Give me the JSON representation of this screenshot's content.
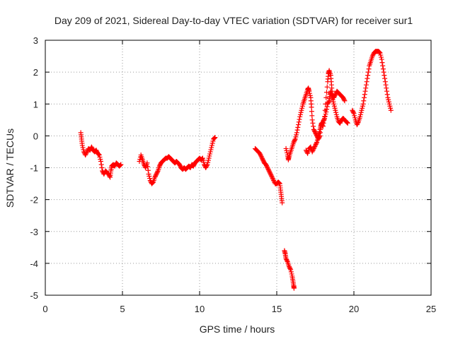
{
  "chart_data": {
    "type": "scatter",
    "title": "Day 209 of 2021, Sidereal Day-to-day VTEC variation (SDTVAR) for receiver sur1",
    "xlabel": "GPS time / hours",
    "ylabel": "SDTVAR / TECUs",
    "xlim": [
      0,
      25
    ],
    "ylim": [
      -5,
      3
    ],
    "xticks": [
      0,
      5,
      10,
      15,
      20,
      25
    ],
    "yticks": [
      -5,
      -4,
      -3,
      -2,
      -1,
      0,
      1,
      2,
      3
    ],
    "grid": true,
    "marker": "+",
    "marker_color": "#ff0000",
    "segments": [
      {
        "name": "seg-1",
        "points": [
          [
            2.3,
            0.1
          ],
          [
            2.35,
            -0.1
          ],
          [
            2.4,
            -0.3
          ],
          [
            2.5,
            -0.5
          ],
          [
            2.6,
            -0.6
          ],
          [
            2.7,
            -0.5
          ],
          [
            2.8,
            -0.4
          ],
          [
            2.9,
            -0.45
          ],
          [
            3.0,
            -0.35
          ],
          [
            3.1,
            -0.45
          ],
          [
            3.2,
            -0.5
          ],
          [
            3.3,
            -0.45
          ],
          [
            3.4,
            -0.55
          ],
          [
            3.5,
            -0.6
          ],
          [
            3.6,
            -0.8
          ],
          [
            3.7,
            -1.1
          ],
          [
            3.8,
            -1.2
          ],
          [
            3.9,
            -1.1
          ],
          [
            4.0,
            -1.15
          ],
          [
            4.1,
            -1.2
          ],
          [
            4.2,
            -1.3
          ],
          [
            4.25,
            -1.1
          ],
          [
            4.3,
            -0.95
          ],
          [
            4.4,
            -0.9
          ],
          [
            4.5,
            -0.95
          ],
          [
            4.6,
            -0.85
          ],
          [
            4.7,
            -0.9
          ],
          [
            4.8,
            -0.95
          ],
          [
            4.9,
            -0.9
          ]
        ]
      },
      {
        "name": "seg-2",
        "points": [
          [
            6.1,
            -0.8
          ],
          [
            6.2,
            -0.6
          ],
          [
            6.3,
            -0.75
          ],
          [
            6.4,
            -0.9
          ],
          [
            6.5,
            -1.0
          ],
          [
            6.6,
            -0.85
          ],
          [
            6.7,
            -1.2
          ],
          [
            6.8,
            -1.4
          ],
          [
            6.9,
            -1.5
          ],
          [
            7.0,
            -1.45
          ],
          [
            7.1,
            -1.3
          ],
          [
            7.2,
            -1.2
          ],
          [
            7.3,
            -1.1
          ],
          [
            7.4,
            -0.95
          ],
          [
            7.5,
            -0.85
          ],
          [
            7.6,
            -0.8
          ],
          [
            7.7,
            -0.75
          ],
          [
            7.8,
            -0.7
          ],
          [
            7.9,
            -0.7
          ],
          [
            8.0,
            -0.65
          ],
          [
            8.1,
            -0.7
          ],
          [
            8.2,
            -0.75
          ],
          [
            8.3,
            -0.8
          ],
          [
            8.4,
            -0.85
          ],
          [
            8.5,
            -0.8
          ],
          [
            8.6,
            -0.85
          ],
          [
            8.7,
            -0.9
          ],
          [
            8.8,
            -1.0
          ],
          [
            8.9,
            -1.05
          ],
          [
            9.0,
            -1.0
          ],
          [
            9.1,
            -1.05
          ],
          [
            9.2,
            -1.0
          ],
          [
            9.3,
            -0.95
          ],
          [
            9.4,
            -1.0
          ],
          [
            9.5,
            -0.9
          ],
          [
            9.6,
            -0.95
          ],
          [
            9.7,
            -0.85
          ],
          [
            9.8,
            -0.8
          ],
          [
            9.9,
            -0.75
          ],
          [
            10.0,
            -0.7
          ],
          [
            10.1,
            -0.75
          ],
          [
            10.2,
            -0.7
          ],
          [
            10.3,
            -0.9
          ],
          [
            10.4,
            -1.0
          ],
          [
            10.5,
            -0.9
          ],
          [
            10.6,
            -0.7
          ],
          [
            10.7,
            -0.5
          ],
          [
            10.8,
            -0.3
          ],
          [
            10.9,
            -0.1
          ],
          [
            11.0,
            -0.05
          ]
        ]
      },
      {
        "name": "seg-3",
        "points": [
          [
            13.6,
            -0.4
          ],
          [
            13.7,
            -0.45
          ],
          [
            13.8,
            -0.5
          ],
          [
            13.9,
            -0.55
          ],
          [
            14.0,
            -0.65
          ],
          [
            14.1,
            -0.75
          ],
          [
            14.2,
            -0.85
          ],
          [
            14.3,
            -0.9
          ],
          [
            14.4,
            -1.0
          ],
          [
            14.5,
            -1.1
          ],
          [
            14.6,
            -1.2
          ],
          [
            14.7,
            -1.3
          ],
          [
            14.8,
            -1.4
          ],
          [
            14.9,
            -1.5
          ],
          [
            15.0,
            -1.5
          ],
          [
            15.1,
            -1.45
          ],
          [
            15.2,
            -1.5
          ],
          [
            15.25,
            -1.7
          ],
          [
            15.3,
            -1.9
          ],
          [
            15.35,
            -2.1
          ]
        ]
      },
      {
        "name": "seg-4",
        "points": [
          [
            15.5,
            -3.6
          ],
          [
            15.55,
            -3.7
          ],
          [
            15.6,
            -3.85
          ],
          [
            15.7,
            -3.95
          ],
          [
            15.8,
            -4.1
          ],
          [
            15.9,
            -4.2
          ],
          [
            16.0,
            -4.4
          ],
          [
            16.05,
            -4.55
          ],
          [
            16.1,
            -4.7
          ],
          [
            16.12,
            -4.78
          ]
        ]
      },
      {
        "name": "seg-5",
        "points": [
          [
            15.6,
            -0.4
          ],
          [
            15.7,
            -0.6
          ],
          [
            15.75,
            -0.75
          ],
          [
            15.8,
            -0.65
          ],
          [
            15.9,
            -0.5
          ],
          [
            16.0,
            -0.35
          ],
          [
            16.1,
            -0.2
          ],
          [
            16.2,
            -0.1
          ],
          [
            16.3,
            0.1
          ],
          [
            16.4,
            0.35
          ],
          [
            16.5,
            0.6
          ],
          [
            16.6,
            0.8
          ],
          [
            16.7,
            1.0
          ],
          [
            16.8,
            1.15
          ],
          [
            16.9,
            1.3
          ],
          [
            17.0,
            1.45
          ],
          [
            17.05,
            1.5
          ],
          [
            17.1,
            1.4
          ],
          [
            17.2,
            1.2
          ],
          [
            17.25,
            0.9
          ],
          [
            17.3,
            0.5
          ],
          [
            17.4,
            0.2
          ],
          [
            17.5,
            0.1
          ],
          [
            17.6,
            0.0
          ],
          [
            17.7,
            -0.1
          ],
          [
            17.8,
            0.0
          ],
          [
            17.85,
            0.3
          ],
          [
            17.9,
            0.4
          ],
          [
            18.0,
            0.3
          ],
          [
            18.1,
            0.6
          ],
          [
            18.2,
            1.2
          ],
          [
            18.3,
            1.7
          ],
          [
            18.35,
            1.95
          ],
          [
            18.4,
            2.05
          ],
          [
            18.5,
            1.9
          ],
          [
            18.55,
            1.6
          ],
          [
            18.6,
            1.3
          ],
          [
            18.7,
            1.2
          ],
          [
            18.8,
            1.3
          ],
          [
            18.9,
            1.4
          ],
          [
            19.0,
            1.35
          ],
          [
            19.1,
            1.3
          ],
          [
            19.2,
            1.25
          ],
          [
            19.3,
            1.2
          ],
          [
            19.4,
            1.1
          ]
        ]
      },
      {
        "name": "seg-6",
        "points": [
          [
            16.9,
            -0.45
          ],
          [
            17.0,
            -0.55
          ],
          [
            17.1,
            -0.4
          ],
          [
            17.2,
            -0.35
          ],
          [
            17.3,
            -0.5
          ],
          [
            17.4,
            -0.4
          ],
          [
            17.5,
            -0.3
          ],
          [
            17.6,
            -0.2
          ],
          [
            17.7,
            0.0
          ],
          [
            17.8,
            0.2
          ],
          [
            17.9,
            0.35
          ],
          [
            18.0,
            0.45
          ],
          [
            18.1,
            0.55
          ],
          [
            18.2,
            0.75
          ],
          [
            18.3,
            1.0
          ],
          [
            18.4,
            1.1
          ],
          [
            18.45,
            1.3
          ],
          [
            18.5,
            1.4
          ],
          [
            18.6,
            1.2
          ],
          [
            18.7,
            1.0
          ],
          [
            18.8,
            0.8
          ],
          [
            18.9,
            0.6
          ],
          [
            19.0,
            0.45
          ],
          [
            19.1,
            0.4
          ],
          [
            19.2,
            0.5
          ],
          [
            19.3,
            0.55
          ],
          [
            19.4,
            0.5
          ],
          [
            19.5,
            0.45
          ],
          [
            19.6,
            0.4
          ]
        ]
      },
      {
        "name": "seg-7",
        "points": [
          [
            19.9,
            0.8
          ],
          [
            20.0,
            0.7
          ],
          [
            20.1,
            0.5
          ],
          [
            20.2,
            0.35
          ],
          [
            20.3,
            0.45
          ],
          [
            20.4,
            0.6
          ],
          [
            20.5,
            0.8
          ],
          [
            20.6,
            1.0
          ],
          [
            20.7,
            1.3
          ],
          [
            20.8,
            1.6
          ],
          [
            20.9,
            1.9
          ],
          [
            21.0,
            2.2
          ],
          [
            21.1,
            2.35
          ],
          [
            21.2,
            2.5
          ],
          [
            21.3,
            2.6
          ],
          [
            21.4,
            2.65
          ],
          [
            21.5,
            2.65
          ],
          [
            21.6,
            2.65
          ],
          [
            21.7,
            2.6
          ],
          [
            21.8,
            2.4
          ],
          [
            21.9,
            2.1
          ],
          [
            22.0,
            1.8
          ],
          [
            22.1,
            1.5
          ],
          [
            22.2,
            1.2
          ],
          [
            22.3,
            1.0
          ],
          [
            22.4,
            0.8
          ]
        ]
      }
    ]
  }
}
